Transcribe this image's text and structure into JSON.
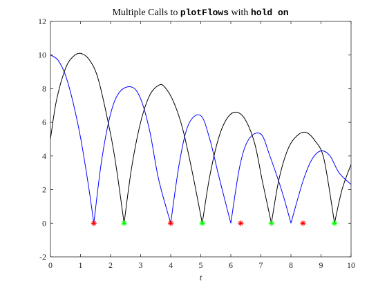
{
  "chart_data": {
    "type": "line",
    "title": {
      "segments": [
        {
          "text": "Multiple Calls to ",
          "style": "serif"
        },
        {
          "text": "plotFlows",
          "style": "mono"
        },
        {
          "text": " with ",
          "style": "serif"
        },
        {
          "text": "hold on",
          "style": "mono"
        }
      ]
    },
    "xlabel": "t",
    "ylabel": "",
    "xlim": [
      0,
      10
    ],
    "ylim": [
      -2,
      12
    ],
    "xticks": [
      0,
      1,
      2,
      3,
      4,
      5,
      6,
      7,
      8,
      9,
      10
    ],
    "yticks": [
      -2,
      0,
      2,
      4,
      6,
      8,
      10,
      12
    ],
    "grid": false,
    "box": true,
    "series": [
      {
        "color": "#0000ff",
        "x": [
          0,
          0.25,
          0.5,
          0.75,
          1.0,
          1.25,
          1.444,
          1.7,
          2.0,
          2.3,
          2.7,
          3.0,
          3.3,
          3.6,
          4.0,
          4.3,
          4.6,
          5.0,
          5.3,
          5.6,
          6.0,
          6.3,
          6.6,
          7.0,
          7.3,
          7.7,
          8.0,
          8.4,
          8.7,
          9.0,
          9.3,
          9.6,
          10.0
        ],
        "y": [
          10.0,
          9.7,
          8.8,
          7.2,
          5.1,
          2.4,
          0,
          3.7,
          6.5,
          7.8,
          8.1,
          7.4,
          5.5,
          2.6,
          0,
          3.7,
          5.9,
          6.4,
          5.0,
          2.8,
          0,
          3.4,
          5.0,
          5.3,
          4.0,
          1.9,
          0,
          2.5,
          3.8,
          4.3,
          4.0,
          3.0,
          2.3
        ]
      },
      {
        "color": "#000000",
        "x": [
          0,
          0.2,
          0.5,
          0.75,
          1.0,
          1.3,
          1.6,
          2.0,
          2.2,
          2.45,
          2.7,
          3.0,
          3.3,
          3.6,
          3.8,
          4.1,
          4.4,
          4.7,
          5.05,
          5.3,
          5.6,
          5.9,
          6.2,
          6.5,
          6.8,
          7.05,
          7.35,
          7.6,
          7.9,
          8.2,
          8.5,
          8.8,
          9.1,
          9.45,
          9.7,
          10.0
        ],
        "y": [
          5.0,
          7.3,
          9.2,
          9.9,
          10.1,
          9.7,
          8.5,
          5.3,
          3.2,
          0,
          3.3,
          6.0,
          7.6,
          8.2,
          8.1,
          7.2,
          5.6,
          3.2,
          0,
          2.8,
          5.1,
          6.3,
          6.6,
          6.1,
          4.7,
          2.5,
          0,
          2.6,
          4.4,
          5.2,
          5.4,
          4.9,
          3.8,
          0,
          2.0,
          3.5
        ]
      }
    ],
    "markers": [
      {
        "x": 1.444,
        "y": 0,
        "color": "#ff0000",
        "symbol": "*"
      },
      {
        "x": 2.45,
        "y": 0,
        "color": "#00ff00",
        "symbol": "*"
      },
      {
        "x": 4.0,
        "y": 0,
        "color": "#ff0000",
        "symbol": "*"
      },
      {
        "x": 5.05,
        "y": 0,
        "color": "#00ff00",
        "symbol": "*"
      },
      {
        "x": 6.33,
        "y": 0,
        "color": "#ff0000",
        "symbol": "*"
      },
      {
        "x": 7.35,
        "y": 0,
        "color": "#00ff00",
        "symbol": "*"
      },
      {
        "x": 8.4,
        "y": 0,
        "color": "#ff0000",
        "symbol": "*"
      },
      {
        "x": 9.45,
        "y": 0,
        "color": "#00ff00",
        "symbol": "*"
      }
    ]
  }
}
